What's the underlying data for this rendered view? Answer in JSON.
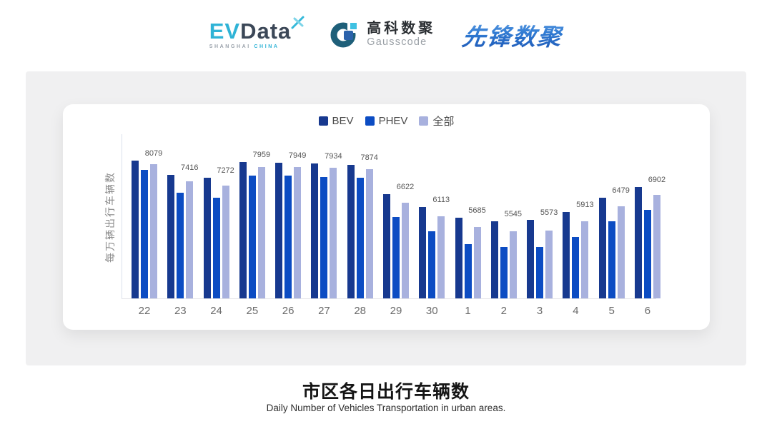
{
  "header": {
    "evdata": {
      "ev": "EV",
      "data": "Data",
      "sub_left": "SHANGHAI",
      "sub_right": "CHINA"
    },
    "gausscode": {
      "cn": "高科数聚",
      "en": "Gausscode"
    },
    "xianfeng": {
      "text": "先锋数聚"
    }
  },
  "chart_data": {
    "type": "bar",
    "title": "市区各日出行车辆数",
    "subtitle": "Daily Number of Vehicles Transportation in urban areas.",
    "ylabel": "每万辆出行车辆数",
    "categories": [
      "22",
      "23",
      "24",
      "25",
      "26",
      "27",
      "28",
      "29",
      "30",
      "1",
      "2",
      "3",
      "4",
      "5",
      "6"
    ],
    "series": [
      {
        "name": "BEV",
        "color": "#17398f",
        "values": [
          8215,
          7660,
          7555,
          8140,
          8115,
          8095,
          8050,
          6925,
          6445,
          6050,
          5905,
          5960,
          6250,
          6790,
          7215
        ],
        "labeled": false,
        "note": "values estimated from bar heights"
      },
      {
        "name": "PHEV",
        "color": "#0c4cc3",
        "values": [
          7845,
          7000,
          6790,
          7625,
          7625,
          7580,
          7555,
          6085,
          5525,
          5050,
          4940,
          4940,
          5320,
          5905,
          6355
        ],
        "labeled": false,
        "note": "values estimated from bar heights"
      },
      {
        "name": "全部",
        "color": "#a8b1de",
        "values": [
          8079,
          7416,
          7272,
          7959,
          7949,
          7934,
          7874,
          6622,
          6113,
          5685,
          5545,
          5573,
          5913,
          6479,
          6902
        ],
        "labeled": true,
        "note": "values shown as data labels on chart"
      }
    ],
    "data_labels": [
      8079,
      7416,
      7272,
      7959,
      7949,
      7934,
      7874,
      6622,
      6113,
      5685,
      5545,
      5573,
      5913,
      6479,
      6902
    ],
    "axis": {
      "y_min": 3000,
      "y_max": 9200,
      "grid": false,
      "legend_position": "top"
    }
  }
}
